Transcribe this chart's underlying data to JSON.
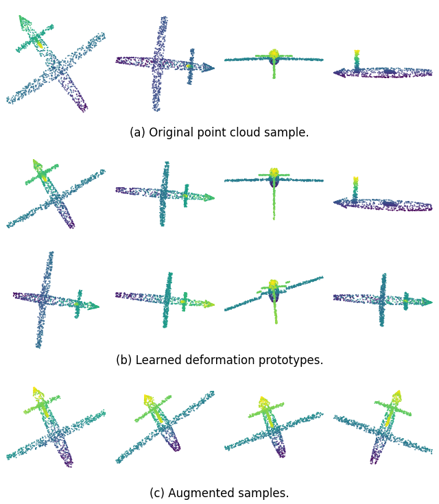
{
  "caption_a": "(a) Original point cloud sample.",
  "caption_b": "(b) Learned deformation prototypes.",
  "caption_c": "(c) Augmented samples.",
  "n_points": 1500,
  "point_size": 2.0,
  "colormap": "viridis",
  "background_color": "#ffffff",
  "caption_fontsize": 12,
  "height_ratios": [
    2.2,
    0.28,
    1.9,
    1.9,
    0.28,
    2.1,
    0.28
  ]
}
